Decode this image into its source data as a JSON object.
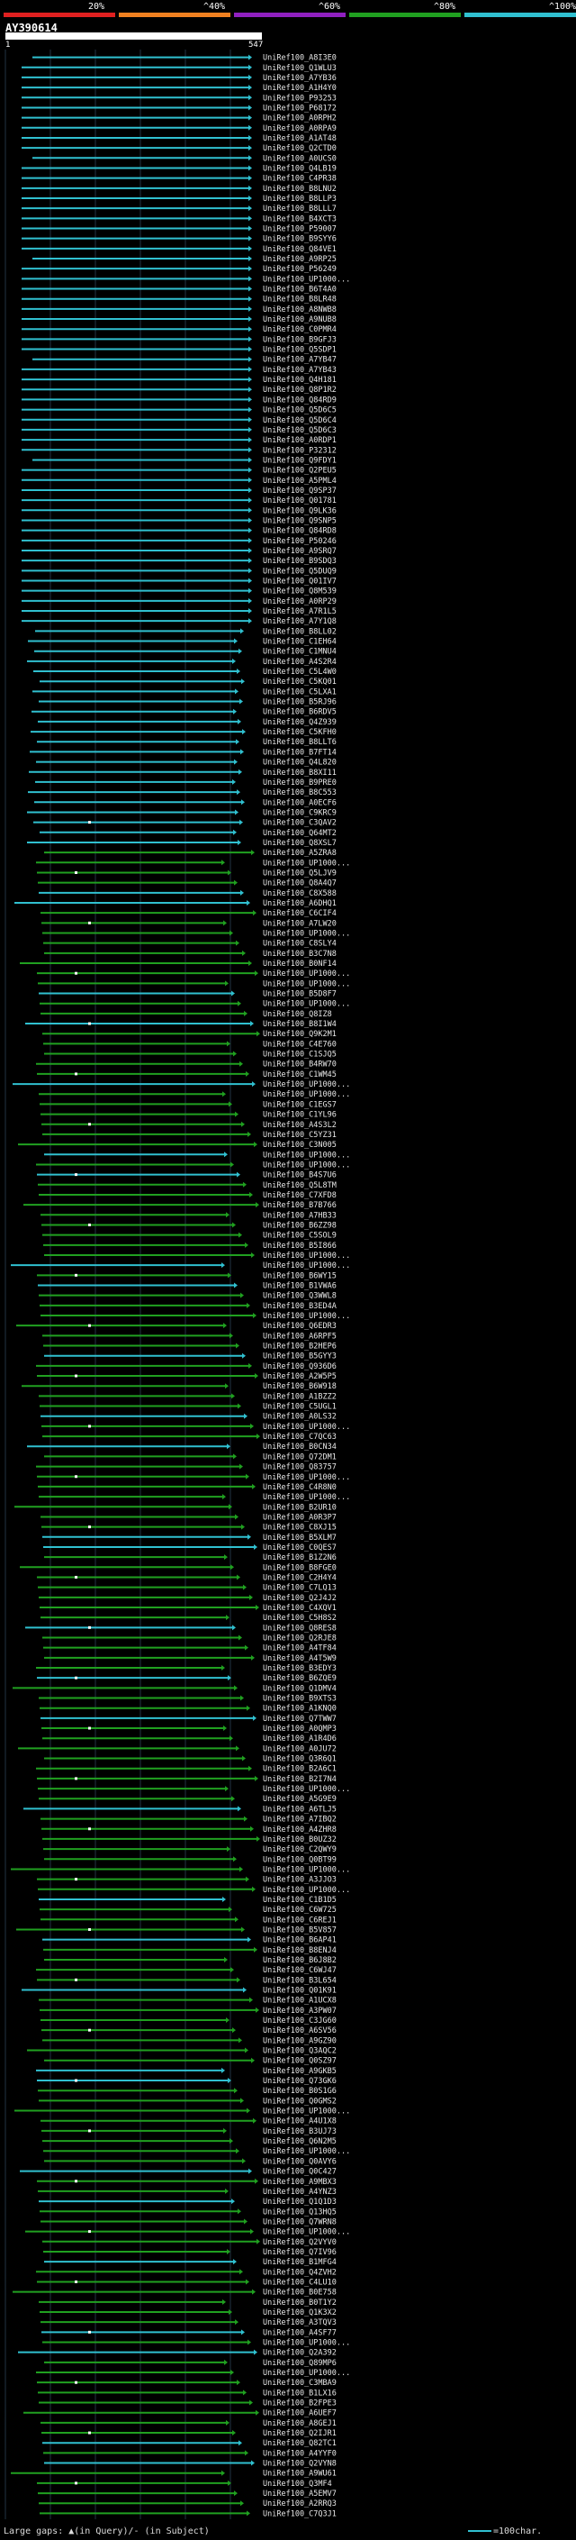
{
  "legend": {
    "labels": [
      "20%",
      "^40%",
      "^60%",
      "^80%",
      "^100%"
    ],
    "colors": [
      "#e02020",
      "#f08020",
      "#9020c0",
      "#20a020",
      "#30c0d0"
    ]
  },
  "query": {
    "id": "AY390614",
    "start": "1",
    "end": "547"
  },
  "footer": {
    "text": "Large gaps: ▲(in Query)/- (in Subject)",
    "scale": "=100char."
  },
  "hits": [
    "UniRef100_A8I3E0",
    "UniRef100_Q1WLU3",
    "UniRef100_A7YB36",
    "UniRef100_A1H4Y0",
    "UniRef100_P93253",
    "UniRef100_P68172",
    "UniRef100_A0RPH2",
    "UniRef100_A0RPA9",
    "UniRef100_A1AT48",
    "UniRef100_Q2CTD0",
    "UniRef100_A0UCS0",
    "UniRef100_Q4LB19",
    "UniRef100_C4PR38",
    "UniRef100_B8LNU2",
    "UniRef100_B8LLP3",
    "UniRef100_B8LLL7",
    "UniRef100_B4XCT3",
    "UniRef100_P59007",
    "UniRef100_B9SYY6",
    "UniRef100_Q84VE1",
    "UniRef100_A9RP25",
    "UniRef100_P56249",
    "UniRef100_UP1000...",
    "UniRef100_B6T4A0",
    "UniRef100_B8LR48",
    "UniRef100_A8NWB8",
    "UniRef100_A9NUB8",
    "UniRef100_C0PMR4",
    "UniRef100_B9GFJ3",
    "UniRef100_Q5SDP1",
    "UniRef100_A7YB47",
    "UniRef100_A7YB43",
    "UniRef100_Q4H181",
    "UniRef100_Q8P1R2",
    "UniRef100_Q84RD9",
    "UniRef100_Q5D6C5",
    "UniRef100_Q5D6C4",
    "UniRef100_Q5D6C3",
    "UniRef100_A0RDP1",
    "UniRef100_P32312",
    "UniRef100_Q9FDY1",
    "UniRef100_Q2PEU5",
    "UniRef100_A5PML4",
    "UniRef100_Q9SP37",
    "UniRef100_Q01781",
    "UniRef100_Q9LK36",
    "UniRef100_Q9SNP5",
    "UniRef100_Q84RD8",
    "UniRef100_P50246",
    "UniRef100_A9SRQ7",
    "UniRef100_B9SDQ3",
    "UniRef100_Q5DUQ9",
    "UniRef100_Q01IV7",
    "UniRef100_Q8M539",
    "UniRef100_A0RP29",
    "UniRef100_A7R1L5",
    "UniRef100_A7Y1Q8",
    "UniRef100_B8LL02",
    "UniRef100_C1EH64",
    "UniRef100_C1MNU4",
    "UniRef100_A4S2R4",
    "UniRef100_C5L4W0",
    "UniRef100_C5KQ01",
    "UniRef100_C5LXA1",
    "UniRef100_B5RJ96",
    "UniRef100_B6RDV5",
    "UniRef100_Q4Z939",
    "UniRef100_C5KFH0",
    "UniRef100_B8LLT6",
    "UniRef100_B7FT14",
    "UniRef100_Q4L820",
    "UniRef100_B8XI11",
    "UniRef100_B9PRE0",
    "UniRef100_B8C553",
    "UniRef100_A0ECF6",
    "UniRef100_C9KRC9",
    "UniRef100_C3QAV2",
    "UniRef100_Q64MT2",
    "UniRef100_Q8XSL7",
    "UniRef100_A5ZRA8",
    "UniRef100_UP1000...",
    "UniRef100_Q5LJV9",
    "UniRef100_Q8A4Q7",
    "UniRef100_C8X588",
    "UniRef100_A6DHQ1",
    "UniRef100_C6CIF4",
    "UniRef100_A7LW20",
    "UniRef100_UP1000...",
    "UniRef100_C8SLY4",
    "UniRef100_B3C7N8",
    "UniRef100_B0NF14",
    "UniRef100_UP1000...",
    "UniRef100_UP1000...",
    "UniRef100_B5D8F7",
    "UniRef100_UP1000...",
    "UniRef100_Q8IZ8",
    "UniRef100_B8I1W4",
    "UniRef100_Q9K2M1",
    "UniRef100_C4E760",
    "UniRef100_C1SJQ5",
    "UniRef100_B4RW70",
    "UniRef100_C1WM45",
    "UniRef100_UP1000...",
    "UniRef100_UP1000...",
    "UniRef100_C1EGS7",
    "UniRef100_C1YL96",
    "UniRef100_A4S3L2",
    "UniRef100_C5YZ31",
    "UniRef100_C3N005",
    "UniRef100_UP1000...",
    "UniRef100_UP1000...",
    "UniRef100_B4S7U6",
    "UniRef100_Q5L8TM",
    "UniRef100_C7XFD8",
    "UniRef100_B7B766",
    "UniRef100_A7HB33",
    "UniRef100_B6ZZ98",
    "UniRef100_C5SOL9",
    "UniRef100_B5I866",
    "UniRef100_UP1000...",
    "UniRef100_UP1000...",
    "UniRef100_B6WY15",
    "UniRef100_B1VWA6",
    "UniRef100_Q3WWL8",
    "UniRef100_B3ED4A",
    "UniRef100_UP1000...",
    "UniRef100_Q6EDR3",
    "UniRef100_A6RPF5",
    "UniRef100_B2HEP6",
    "UniRef100_B5GYY3",
    "UniRef100_Q936D6",
    "UniRef100_A2W5P5",
    "UniRef100_B6W918",
    "UniRef100_A1BZZ2",
    "UniRef100_C5UGL1",
    "UniRef100_A0LS32",
    "UniRef100_UP1000...",
    "UniRef100_C7QC63",
    "UniRef100_B0CN34",
    "UniRef100_Q72DM1",
    "UniRef100_Q83757",
    "UniRef100_UP1000...",
    "UniRef100_C4R8N0",
    "UniRef100_UP1000...",
    "UniRef100_B2UR10",
    "UniRef100_A0R3P7",
    "UniRef100_C8XJ15",
    "UniRef100_B5XLM7",
    "UniRef100_C0QES7",
    "UniRef100_B1Z2N6",
    "UniRef100_B8FGE0",
    "UniRef100_C2H4Y4",
    "UniRef100_C7LQ13",
    "UniRef100_Q2J4J2",
    "UniRef100_C4XQV1",
    "UniRef100_C5H8S2",
    "UniRef100_Q8RES8",
    "UniRef100_Q2RJE8",
    "UniRef100_A4TF84",
    "UniRef100_A4T5W9",
    "UniRef100_B3EDY3",
    "UniRef100_B6ZQE9",
    "UniRef100_Q1DMV4",
    "UniRef100_B9XTS3",
    "UniRef100_A1KNQ0",
    "UniRef100_Q7TWW7",
    "UniRef100_A0QMP3",
    "UniRef100_A1R4D6",
    "UniRef100_A0JU72",
    "UniRef100_Q3R6Q1",
    "UniRef100_B2A6C1",
    "UniRef100_B2I7N4",
    "UniRef100_UP1000...",
    "UniRef100_A5G9E9",
    "UniRef100_A6TLJ5",
    "UniRef100_A7IBQ2",
    "UniRef100_A4ZHR8",
    "UniRef100_B0UZ32",
    "UniRef100_C2QWY9",
    "UniRef100_Q0BT99",
    "UniRef100_UP1000...",
    "UniRef100_A3JJO3",
    "UniRef100_UP1000...",
    "UniRef100_C1B1D5",
    "UniRef100_C6W725",
    "UniRef100_C6REJ1",
    "UniRef100_B5V857",
    "UniRef100_B6AP41",
    "UniRef100_B8ENJ4",
    "UniRef100_B6J8B2",
    "UniRef100_C6WJ47",
    "UniRef100_B3L654",
    "UniRef100_Q01K91",
    "UniRef100_A1UCX8",
    "UniRef100_A3PW07",
    "UniRef100_C3JG60",
    "UniRef100_A6SV56",
    "UniRef100_A9GZ90",
    "UniRef100_Q3AQC2",
    "UniRef100_Q0SZ97",
    "UniRef100_A9GKB5",
    "UniRef100_Q73GK6",
    "UniRef100_B0S1G6",
    "UniRef100_Q0GMS2",
    "UniRef100_UP1000...",
    "UniRef100_A4U1X8",
    "UniRef100_B3UJ73",
    "UniRef100_Q6N2M5",
    "UniRef100_UP1000...",
    "UniRef100_Q0AVY6",
    "UniRef100_Q0C427",
    "UniRef100_A9MBX3",
    "UniRef100_A4YNZ3",
    "UniRef100_Q1Q1D3",
    "UniRef100_Q13HQ5",
    "UniRef100_Q7WRN8",
    "UniRef100_UP1000...",
    "UniRef100_Q2VYV0",
    "UniRef100_Q7IV96",
    "UniRef100_B1MFG4",
    "UniRef100_Q4ZVH2",
    "UniRef100_C4LU10",
    "UniRef100_B0E758",
    "UniRef100_B0T1Y2",
    "UniRef100_Q1K3X2",
    "UniRef100_A3TQV3",
    "UniRef100_A4SF77",
    "UniRef100_UP1000...",
    "UniRef100_Q2A392",
    "UniRef100_Q89MP6",
    "UniRef100_UP1000...",
    "UniRef100_C3MBA9",
    "UniRef100_B1LX16",
    "UniRef100_B2FPE3",
    "UniRef100_A6UEF7",
    "UniRef100_A8GEJ1",
    "UniRef100_Q2IJR1",
    "UniRef100_Q82TC1",
    "UniRef100_A4YYF0",
    "UniRef100_Q2VYN8",
    "UniRef100_A9WU61",
    "UniRef100_Q3MF4",
    "UniRef100_A5EMV7",
    "UniRef100_A2RRQ3",
    "UniRef100_C7Q3J1"
  ]
}
